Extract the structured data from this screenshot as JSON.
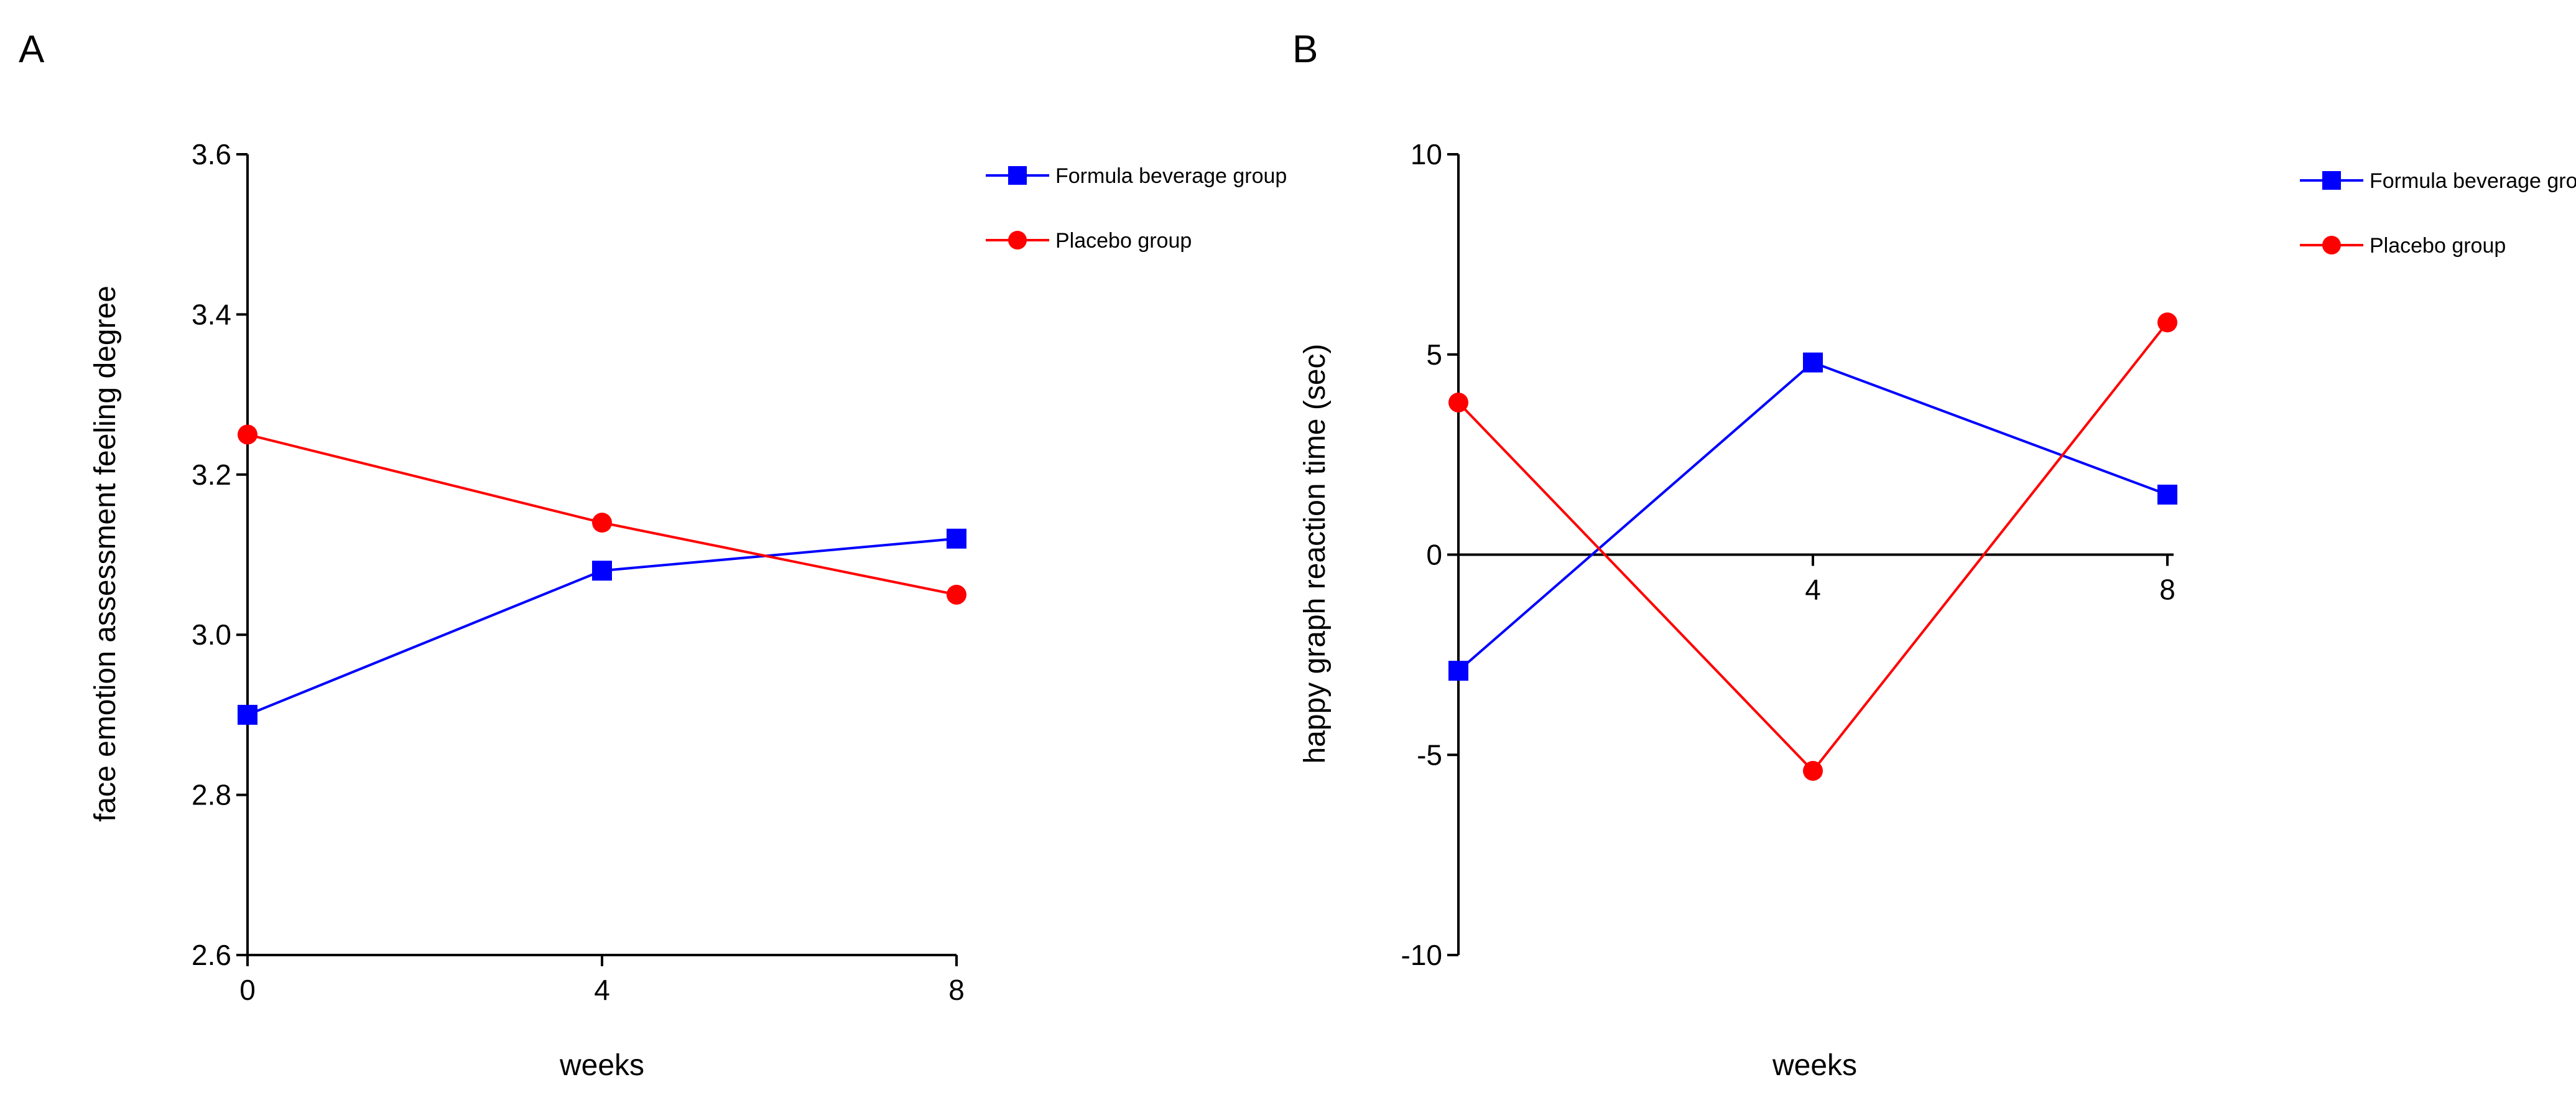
{
  "chart_data": [
    {
      "panel": "A",
      "type": "line",
      "x": [
        0,
        4,
        8
      ],
      "xlabel": "weeks",
      "ylabel": "face emotion assessment feeling degree",
      "ylim": [
        2.6,
        3.6
      ],
      "yticks": [
        2.6,
        2.8,
        3.0,
        3.2,
        3.4,
        3.6
      ],
      "ytick_labels": [
        "2.6",
        "2.8",
        "3.0",
        "3.2",
        "3.4",
        "3.6"
      ],
      "xtick_labels": [
        "0",
        "4",
        "8"
      ],
      "series": [
        {
          "name": "Formula beverage group",
          "color": "#0000ff",
          "marker": "square",
          "values": [
            2.9,
            3.08,
            3.12
          ]
        },
        {
          "name": "Placebo group",
          "color": "#ff0000",
          "marker": "circle",
          "values": [
            3.25,
            3.14,
            3.05
          ]
        }
      ],
      "legend": "top-right",
      "grid": false
    },
    {
      "panel": "B",
      "type": "line",
      "x": [
        0,
        4,
        8
      ],
      "xlabel": "weeks",
      "ylabel": "happy graph reaction time (sec)",
      "ylim": [
        -10,
        10
      ],
      "yticks": [
        -10,
        -5,
        0,
        5,
        10
      ],
      "ytick_labels": [
        "-10",
        "-5",
        "0",
        "5",
        "10"
      ],
      "xtick_labels": [
        "4",
        "8"
      ],
      "series": [
        {
          "name": "Formula beverage group",
          "color": "#0000ff",
          "marker": "square",
          "values": [
            -2.9,
            4.8,
            1.5
          ]
        },
        {
          "name": "Placebo group",
          "color": "#ff0000",
          "marker": "circle",
          "values": [
            3.8,
            -5.4,
            5.8
          ]
        }
      ],
      "legend": "top-right",
      "grid": false
    }
  ]
}
